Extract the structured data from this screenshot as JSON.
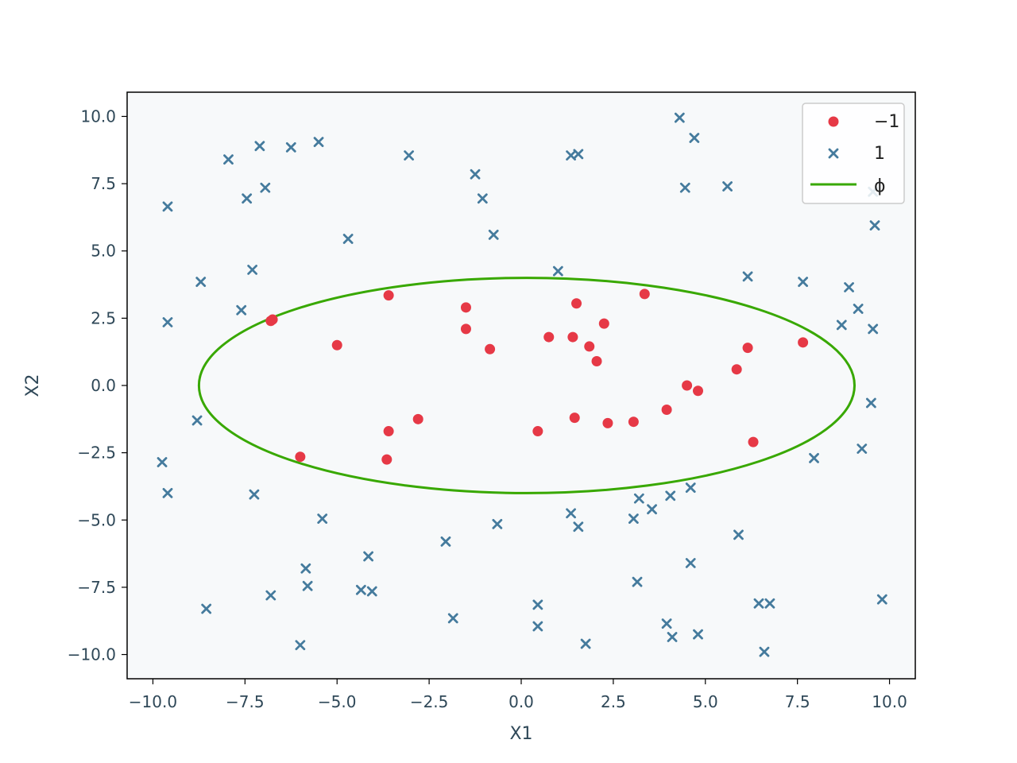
{
  "chart_data": {
    "type": "scatter",
    "xlabel": "X1",
    "ylabel": "X2",
    "xlim": [
      -10.7,
      10.7
    ],
    "ylim": [
      -10.9,
      10.9
    ],
    "grid": false,
    "legend_position": "top-right",
    "xticks": [
      -10.0,
      -7.5,
      -5.0,
      -2.5,
      0.0,
      2.5,
      5.0,
      7.5,
      10.0
    ],
    "yticks": [
      -10.0,
      -7.5,
      -5.0,
      -2.5,
      0.0,
      2.5,
      5.0,
      7.5,
      10.0
    ],
    "xtick_labels": [
      "−10.0",
      "−7.5",
      "−5.0",
      "−2.5",
      "0.0",
      "2.5",
      "5.0",
      "7.5",
      "10.0"
    ],
    "ytick_labels": [
      "−10.0",
      "−7.5",
      "−5.0",
      "−2.5",
      "0.0",
      "2.5",
      "5.0",
      "7.5",
      "10.0"
    ],
    "colors": {
      "class_neg": "#e63946",
      "class_pos": "#457b9d",
      "boundary": "#38a800",
      "plot_bg": "#f7f9fa",
      "text": "#2f4858"
    },
    "series": [
      {
        "name": "−1",
        "marker": "circle",
        "points": [
          [
            -6.8,
            2.4
          ],
          [
            -6.75,
            2.45
          ],
          [
            -5.0,
            1.5
          ],
          [
            -3.6,
            3.35
          ],
          [
            -1.5,
            2.9
          ],
          [
            -1.5,
            2.1
          ],
          [
            -0.85,
            1.35
          ],
          [
            0.75,
            1.8
          ],
          [
            1.5,
            3.05
          ],
          [
            1.4,
            1.8
          ],
          [
            1.85,
            1.45
          ],
          [
            2.25,
            2.3
          ],
          [
            3.35,
            3.4
          ],
          [
            2.05,
            0.9
          ],
          [
            4.5,
            0.0
          ],
          [
            4.8,
            -0.2
          ],
          [
            5.85,
            0.6
          ],
          [
            6.15,
            1.4
          ],
          [
            7.65,
            1.6
          ],
          [
            3.95,
            -0.9
          ],
          [
            3.05,
            -1.35
          ],
          [
            2.35,
            -1.4
          ],
          [
            1.45,
            -1.2
          ],
          [
            0.45,
            -1.7
          ],
          [
            -2.8,
            -1.25
          ],
          [
            -3.6,
            -1.7
          ],
          [
            -3.65,
            -2.75
          ],
          [
            -6.0,
            -2.65
          ],
          [
            6.3,
            -2.1
          ]
        ]
      },
      {
        "name": "1",
        "marker": "x",
        "points": [
          [
            -7.95,
            8.4
          ],
          [
            -7.1,
            8.9
          ],
          [
            -6.25,
            8.85
          ],
          [
            -5.5,
            9.05
          ],
          [
            -3.05,
            8.55
          ],
          [
            -1.25,
            7.85
          ],
          [
            1.35,
            8.55
          ],
          [
            1.55,
            8.6
          ],
          [
            4.3,
            9.95
          ],
          [
            4.7,
            9.2
          ],
          [
            -9.6,
            6.65
          ],
          [
            -7.45,
            6.95
          ],
          [
            -6.95,
            7.35
          ],
          [
            -1.05,
            6.95
          ],
          [
            4.45,
            7.35
          ],
          [
            5.6,
            7.4
          ],
          [
            9.55,
            7.2
          ],
          [
            9.6,
            5.95
          ],
          [
            -4.7,
            5.45
          ],
          [
            -0.75,
            5.6
          ],
          [
            -8.7,
            3.85
          ],
          [
            -7.3,
            4.3
          ],
          [
            1.0,
            4.25
          ],
          [
            6.15,
            4.05
          ],
          [
            7.65,
            3.85
          ],
          [
            8.9,
            3.65
          ],
          [
            9.15,
            2.85
          ],
          [
            8.7,
            2.25
          ],
          [
            9.55,
            2.1
          ],
          [
            -9.6,
            2.35
          ],
          [
            -7.6,
            2.8
          ],
          [
            9.5,
            -0.65
          ],
          [
            -8.8,
            -1.3
          ],
          [
            -9.75,
            -2.85
          ],
          [
            7.95,
            -2.7
          ],
          [
            9.25,
            -2.35
          ],
          [
            -9.6,
            -4.0
          ],
          [
            -7.25,
            -4.05
          ],
          [
            4.6,
            -3.8
          ],
          [
            3.2,
            -4.2
          ],
          [
            3.55,
            -4.6
          ],
          [
            4.05,
            -4.1
          ],
          [
            1.35,
            -4.75
          ],
          [
            3.05,
            -4.95
          ],
          [
            1.55,
            -5.25
          ],
          [
            -5.4,
            -4.95
          ],
          [
            -0.65,
            -5.15
          ],
          [
            5.9,
            -5.55
          ],
          [
            -2.05,
            -5.8
          ],
          [
            -4.15,
            -6.35
          ],
          [
            -5.85,
            -6.8
          ],
          [
            4.6,
            -6.6
          ],
          [
            -5.8,
            -7.45
          ],
          [
            -4.35,
            -7.6
          ],
          [
            -4.05,
            -7.65
          ],
          [
            -6.8,
            -7.8
          ],
          [
            3.15,
            -7.3
          ],
          [
            0.45,
            -8.15
          ],
          [
            6.45,
            -8.1
          ],
          [
            6.75,
            -8.1
          ],
          [
            9.8,
            -7.95
          ],
          [
            -8.55,
            -8.3
          ],
          [
            -1.85,
            -8.65
          ],
          [
            0.45,
            -8.95
          ],
          [
            3.95,
            -8.85
          ],
          [
            4.1,
            -9.35
          ],
          [
            4.8,
            -9.25
          ],
          [
            -6.0,
            -9.65
          ],
          [
            1.75,
            -9.6
          ],
          [
            6.6,
            -9.9
          ]
        ]
      },
      {
        "name": "ϕ",
        "marker": "line",
        "ellipse": {
          "cx": 0.15,
          "cy": 0.0,
          "rx": 8.9,
          "ry": 4.0
        }
      }
    ]
  }
}
